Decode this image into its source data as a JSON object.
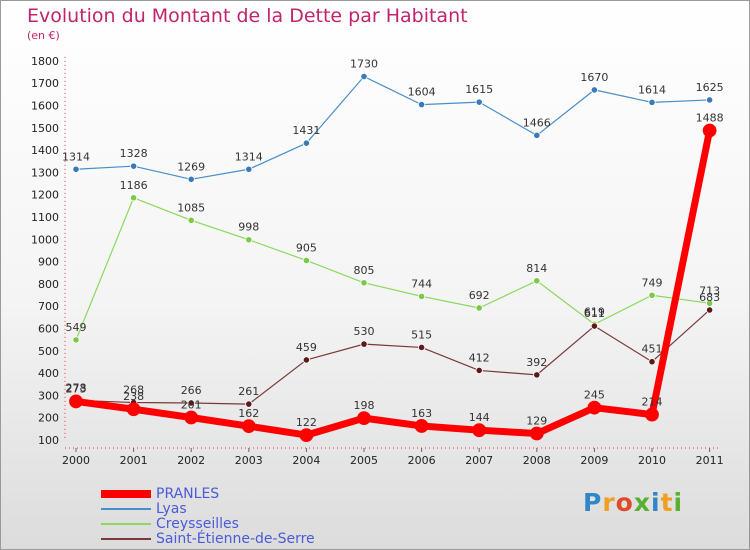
{
  "title": "Evolution du Montant de la Dette par Habitant",
  "subtitle": "(en €)",
  "logo": {
    "letters": [
      {
        "ch": "P",
        "color": "#2f86c8"
      },
      {
        "ch": "r",
        "color": "#f0a020"
      },
      {
        "ch": "o",
        "color": "#e04a2a"
      },
      {
        "ch": "x",
        "color": "#58b030"
      },
      {
        "ch": "i",
        "color": "#2f86c8"
      },
      {
        "ch": "t",
        "color": "#f0a020"
      },
      {
        "ch": "i",
        "color": "#58b030"
      }
    ]
  },
  "chart_data": {
    "type": "line",
    "categories": [
      "2000",
      "2001",
      "2002",
      "2003",
      "2004",
      "2005",
      "2006",
      "2007",
      "2008",
      "2009",
      "2010",
      "2011"
    ],
    "ylim": [
      100,
      1800
    ],
    "yticks": [
      100,
      200,
      300,
      400,
      500,
      600,
      700,
      800,
      900,
      1000,
      1100,
      1200,
      1300,
      1400,
      1500,
      1600,
      1700,
      1800
    ],
    "grid": false,
    "legend_position": "bottom-left",
    "series": [
      {
        "name": "Lyas",
        "color": "#4a8ec8",
        "marker": "#3a7ab8",
        "values": [
          1314,
          1328,
          1269,
          1314,
          1431,
          1730,
          1604,
          1615,
          1466,
          1670,
          1614,
          1625
        ]
      },
      {
        "name": "Creysseilles",
        "color": "#8cd860",
        "marker": "#7cc848",
        "values": [
          549,
          1186,
          1085,
          998,
          905,
          805,
          744,
          692,
          814,
          619,
          749,
          713
        ]
      },
      {
        "name": "Saint-Étienne-de-Serre",
        "color": "#7a3a3a",
        "marker": "#5a1a1a",
        "values": [
          278,
          268,
          266,
          261,
          459,
          530,
          515,
          412,
          392,
          611,
          451,
          683
        ]
      },
      {
        "name": "PRANLES",
        "color": "#ff0000",
        "marker": "#ff0000",
        "values": [
          273,
          238,
          201,
          162,
          122,
          198,
          163,
          144,
          129,
          245,
          214,
          1488
        ]
      }
    ],
    "legend_order": [
      "PRANLES",
      "Lyas",
      "Creysseilles",
      "Saint-Étienne-de-Serre"
    ]
  }
}
